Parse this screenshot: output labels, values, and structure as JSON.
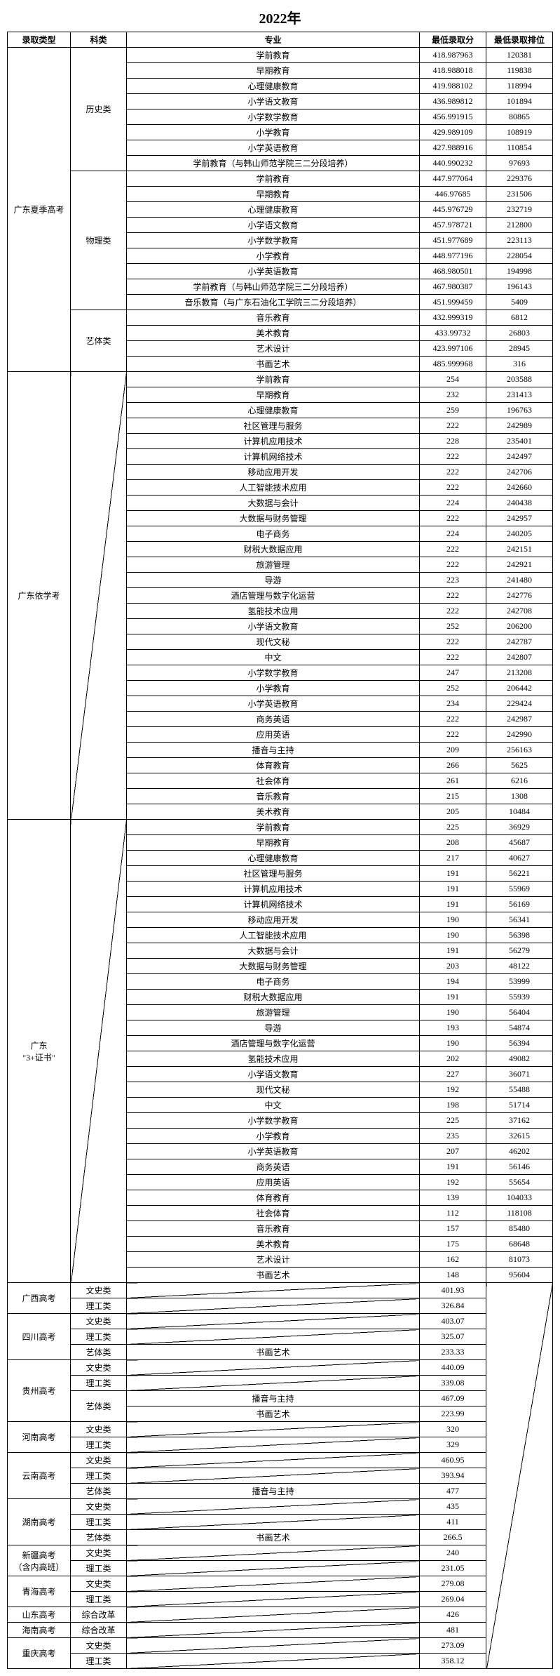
{
  "title": "2022年",
  "headers": {
    "type": "录取类型",
    "subject": "科类",
    "major": "专业",
    "score": "最低录取分",
    "rank": "最低录取排位"
  },
  "gd_summer": {
    "label": "广东夏季高考",
    "history": {
      "label": "历史类",
      "rows": [
        {
          "major": "学前教育",
          "score": "418.987963",
          "rank": "120381"
        },
        {
          "major": "早期教育",
          "score": "418.988018",
          "rank": "119838"
        },
        {
          "major": "心理健康教育",
          "score": "419.988102",
          "rank": "118994"
        },
        {
          "major": "小学语文教育",
          "score": "436.989812",
          "rank": "101894"
        },
        {
          "major": "小学数学教育",
          "score": "456.991915",
          "rank": "80865"
        },
        {
          "major": "小学教育",
          "score": "429.989109",
          "rank": "108919"
        },
        {
          "major": "小学英语教育",
          "score": "427.988916",
          "rank": "110854"
        },
        {
          "major": "学前教育（与韩山师范学院三二分段培养）",
          "score": "440.990232",
          "rank": "97693"
        }
      ]
    },
    "physics": {
      "label": "物理类",
      "rows": [
        {
          "major": "学前教育",
          "score": "447.977064",
          "rank": "229376"
        },
        {
          "major": "早期教育",
          "score": "446.97685",
          "rank": "231506"
        },
        {
          "major": "心理健康教育",
          "score": "445.976729",
          "rank": "232719"
        },
        {
          "major": "小学语文教育",
          "score": "457.978721",
          "rank": "212800"
        },
        {
          "major": "小学数学教育",
          "score": "451.977689",
          "rank": "223113"
        },
        {
          "major": "小学教育",
          "score": "448.977196",
          "rank": "228054"
        },
        {
          "major": "小学英语教育",
          "score": "468.980501",
          "rank": "194998"
        },
        {
          "major": "学前教育（与韩山师范学院三二分段培养）",
          "score": "467.980387",
          "rank": "196143"
        },
        {
          "major": "音乐教育（与广东石油化工学院三二分段培养）",
          "score": "451.999459",
          "rank": "5409"
        }
      ]
    },
    "art": {
      "label": "艺体类",
      "rows": [
        {
          "major": "音乐教育",
          "score": "432.999319",
          "rank": "6812"
        },
        {
          "major": "美术教育",
          "score": "433.99732",
          "rank": "26803"
        },
        {
          "major": "艺术设计",
          "score": "423.997106",
          "rank": "28945"
        },
        {
          "major": "书画艺术",
          "score": "485.999968",
          "rank": "316"
        }
      ]
    }
  },
  "gd_yixuekao": {
    "label": "广东依学考",
    "rows": [
      {
        "major": "学前教育",
        "score": "254",
        "rank": "203588"
      },
      {
        "major": "早期教育",
        "score": "232",
        "rank": "231413"
      },
      {
        "major": "心理健康教育",
        "score": "259",
        "rank": "196763"
      },
      {
        "major": "社区管理与服务",
        "score": "222",
        "rank": "242989"
      },
      {
        "major": "计算机应用技术",
        "score": "228",
        "rank": "235401"
      },
      {
        "major": "计算机网络技术",
        "score": "222",
        "rank": "242497"
      },
      {
        "major": "移动应用开发",
        "score": "222",
        "rank": "242706"
      },
      {
        "major": "人工智能技术应用",
        "score": "222",
        "rank": "242660"
      },
      {
        "major": "大数据与会计",
        "score": "224",
        "rank": "240438"
      },
      {
        "major": "大数据与财务管理",
        "score": "222",
        "rank": "242957"
      },
      {
        "major": "电子商务",
        "score": "224",
        "rank": "240205"
      },
      {
        "major": "财税大数据应用",
        "score": "222",
        "rank": "242151"
      },
      {
        "major": "旅游管理",
        "score": "222",
        "rank": "242921"
      },
      {
        "major": "导游",
        "score": "223",
        "rank": "241480"
      },
      {
        "major": "酒店管理与数字化运营",
        "score": "222",
        "rank": "242776"
      },
      {
        "major": "氢能技术应用",
        "score": "222",
        "rank": "242708"
      },
      {
        "major": "小学语文教育",
        "score": "252",
        "rank": "206200"
      },
      {
        "major": "现代文秘",
        "score": "222",
        "rank": "242787"
      },
      {
        "major": "中文",
        "score": "222",
        "rank": "242807"
      },
      {
        "major": "小学数学教育",
        "score": "247",
        "rank": "213208"
      },
      {
        "major": "小学教育",
        "score": "252",
        "rank": "206442"
      },
      {
        "major": "小学英语教育",
        "score": "234",
        "rank": "229424"
      },
      {
        "major": "商务英语",
        "score": "222",
        "rank": "242987"
      },
      {
        "major": "应用英语",
        "score": "222",
        "rank": "242990"
      },
      {
        "major": "播音与主持",
        "score": "209",
        "rank": "256163"
      },
      {
        "major": "体育教育",
        "score": "266",
        "rank": "5625"
      },
      {
        "major": "社会体育",
        "score": "261",
        "rank": "6216"
      },
      {
        "major": "音乐教育",
        "score": "215",
        "rank": "1308"
      },
      {
        "major": "美术教育",
        "score": "205",
        "rank": "10484"
      }
    ]
  },
  "gd_3cert": {
    "label": "广东\n\"3+证书\"",
    "rows": [
      {
        "major": "学前教育",
        "score": "225",
        "rank": "36929"
      },
      {
        "major": "早期教育",
        "score": "208",
        "rank": "45687"
      },
      {
        "major": "心理健康教育",
        "score": "217",
        "rank": "40627"
      },
      {
        "major": "社区管理与服务",
        "score": "191",
        "rank": "56221"
      },
      {
        "major": "计算机应用技术",
        "score": "191",
        "rank": "55969"
      },
      {
        "major": "计算机网络技术",
        "score": "191",
        "rank": "56169"
      },
      {
        "major": "移动应用开发",
        "score": "190",
        "rank": "56341"
      },
      {
        "major": "人工智能技术应用",
        "score": "190",
        "rank": "56398"
      },
      {
        "major": "大数据与会计",
        "score": "191",
        "rank": "56279"
      },
      {
        "major": "大数据与财务管理",
        "score": "203",
        "rank": "48122"
      },
      {
        "major": "电子商务",
        "score": "194",
        "rank": "53999"
      },
      {
        "major": "财税大数据应用",
        "score": "191",
        "rank": "55939"
      },
      {
        "major": "旅游管理",
        "score": "190",
        "rank": "56404"
      },
      {
        "major": "导游",
        "score": "193",
        "rank": "54874"
      },
      {
        "major": "酒店管理与数字化运营",
        "score": "190",
        "rank": "56394"
      },
      {
        "major": "氢能技术应用",
        "score": "202",
        "rank": "49082"
      },
      {
        "major": "小学语文教育",
        "score": "227",
        "rank": "36071"
      },
      {
        "major": "现代文秘",
        "score": "192",
        "rank": "55488"
      },
      {
        "major": "中文",
        "score": "198",
        "rank": "51714"
      },
      {
        "major": "小学数学教育",
        "score": "225",
        "rank": "37162"
      },
      {
        "major": "小学教育",
        "score": "235",
        "rank": "32615"
      },
      {
        "major": "小学英语教育",
        "score": "207",
        "rank": "46202"
      },
      {
        "major": "商务英语",
        "score": "191",
        "rank": "56146"
      },
      {
        "major": "应用英语",
        "score": "192",
        "rank": "55654"
      },
      {
        "major": "体育教育",
        "score": "139",
        "rank": "104033"
      },
      {
        "major": "社会体育",
        "score": "112",
        "rank": "118108"
      },
      {
        "major": "音乐教育",
        "score": "157",
        "rank": "85480"
      },
      {
        "major": "美术教育",
        "score": "175",
        "rank": "68648"
      },
      {
        "major": "艺术设计",
        "score": "162",
        "rank": "81073"
      },
      {
        "major": "书画艺术",
        "score": "148",
        "rank": "95604"
      }
    ]
  },
  "provinces": {
    "guangxi": {
      "label": "广西高考",
      "rows": [
        {
          "subject": "文史类",
          "major": "",
          "score": "401.93",
          "diag": true
        },
        {
          "subject": "理工类",
          "major": "",
          "score": "326.84",
          "diag": true
        }
      ]
    },
    "sichuan": {
      "label": "四川高考",
      "rows": [
        {
          "subject": "文史类",
          "major": "",
          "score": "403.07",
          "diag": true
        },
        {
          "subject": "理工类",
          "major": "",
          "score": "325.07",
          "diag": true
        },
        {
          "subject": "艺体类",
          "major": "书画艺术",
          "score": "233.33",
          "diag": false
        }
      ]
    },
    "guizhou": {
      "label": "贵州高考",
      "rows": [
        {
          "subject": "文史类",
          "major": "",
          "score": "440.09",
          "diag": true
        },
        {
          "subject": "理工类",
          "major": "",
          "score": "339.08",
          "diag": true
        },
        {
          "subject": "艺体类",
          "major": "播音与主持",
          "score": "467.09",
          "diag": false,
          "span": 2
        },
        {
          "major": "书画艺术",
          "score": "223.99",
          "diag": false
        }
      ]
    },
    "henan": {
      "label": "河南高考",
      "rows": [
        {
          "subject": "文史类",
          "major": "",
          "score": "320",
          "diag": true
        },
        {
          "subject": "理工类",
          "major": "",
          "score": "329",
          "diag": true
        }
      ]
    },
    "yunnan": {
      "label": "云南高考",
      "rows": [
        {
          "subject": "文史类",
          "major": "",
          "score": "460.95",
          "diag": true
        },
        {
          "subject": "理工类",
          "major": "",
          "score": "393.94",
          "diag": true
        },
        {
          "subject": "艺体类",
          "major": "播音与主持",
          "score": "477",
          "diag": false
        }
      ]
    },
    "hunan": {
      "label": "湖南高考",
      "rows": [
        {
          "subject": "文史类",
          "major": "",
          "score": "435",
          "diag": true
        },
        {
          "subject": "理工类",
          "major": "",
          "score": "411",
          "diag": true
        },
        {
          "subject": "艺体类",
          "major": "书画艺术",
          "score": "266.5",
          "diag": false
        }
      ]
    },
    "xinjiang": {
      "label": "新疆高考\n（含内高班）",
      "rows": [
        {
          "subject": "文史类",
          "major": "",
          "score": "240",
          "diag": true
        },
        {
          "subject": "理工类",
          "major": "",
          "score": "231.05",
          "diag": true
        }
      ]
    },
    "qinghai": {
      "label": "青海高考",
      "rows": [
        {
          "subject": "文史类",
          "major": "",
          "score": "279.08",
          "diag": true
        },
        {
          "subject": "理工类",
          "major": "",
          "score": "269.04",
          "diag": true
        }
      ]
    },
    "shandong": {
      "label": "山东高考",
      "rows": [
        {
          "subject": "综合改革",
          "major": "",
          "score": "426",
          "diag": true
        }
      ]
    },
    "hainan": {
      "label": "海南高考",
      "rows": [
        {
          "subject": "综合改革",
          "major": "",
          "score": "481",
          "diag": true
        }
      ]
    },
    "chongqing": {
      "label": "重庆高考",
      "rows": [
        {
          "subject": "文史类",
          "major": "",
          "score": "273.09",
          "diag": true
        },
        {
          "subject": "理工类",
          "major": "",
          "score": "358.12",
          "diag": true
        }
      ]
    }
  }
}
